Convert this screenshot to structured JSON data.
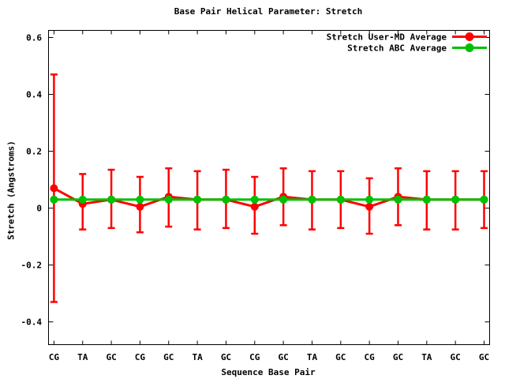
{
  "page": {
    "background": "#ffffff",
    "text_color": "#000000"
  },
  "chart_data": {
    "type": "line",
    "title": "Base Pair Helical Parameter: Stretch",
    "xlabel": "Sequence Base Pair",
    "ylabel": "Stretch (Angstroms)",
    "categories": [
      "CG",
      "TA",
      "GC",
      "CG",
      "GC",
      "TA",
      "GC",
      "CG",
      "GC",
      "TA",
      "GC",
      "CG",
      "GC",
      "TA",
      "GC",
      "GC"
    ],
    "ytick_values": [
      0.6,
      0.4,
      0.2,
      0,
      -0.2,
      -0.4
    ],
    "ytick_labels": [
      "0.6",
      "0.4",
      "0.2",
      "0",
      "-0.2",
      "-0.4"
    ],
    "ylim": [
      -0.48,
      0.625
    ],
    "grid": false,
    "legend_position": "top-right-inside",
    "series": [
      {
        "name": "Stretch User-MD Average",
        "color": "#ff0000",
        "marker": "filled-circle",
        "has_error_bars": true,
        "values": [
          0.07,
          0.015,
          0.03,
          0.005,
          0.04,
          0.03,
          0.03,
          0.005,
          0.04,
          0.03,
          0.03,
          0.005,
          0.04,
          0.03,
          0.03,
          0.03
        ],
        "err_low": [
          -0.33,
          -0.075,
          -0.07,
          -0.085,
          -0.065,
          -0.075,
          -0.07,
          -0.09,
          -0.06,
          -0.075,
          -0.07,
          -0.09,
          -0.06,
          -0.075,
          -0.075,
          -0.07
        ],
        "err_high": [
          0.47,
          0.12,
          0.135,
          0.11,
          0.14,
          0.13,
          0.135,
          0.11,
          0.14,
          0.13,
          0.13,
          0.105,
          0.14,
          0.13,
          0.13,
          0.13
        ]
      },
      {
        "name": "Stretch ABC Average",
        "color": "#00c000",
        "marker": "filled-circle",
        "has_error_bars": false,
        "values": [
          0.03,
          0.03,
          0.03,
          0.03,
          0.03,
          0.03,
          0.03,
          0.03,
          0.03,
          0.03,
          0.03,
          0.03,
          0.03,
          0.03,
          0.03,
          0.03
        ]
      }
    ]
  }
}
